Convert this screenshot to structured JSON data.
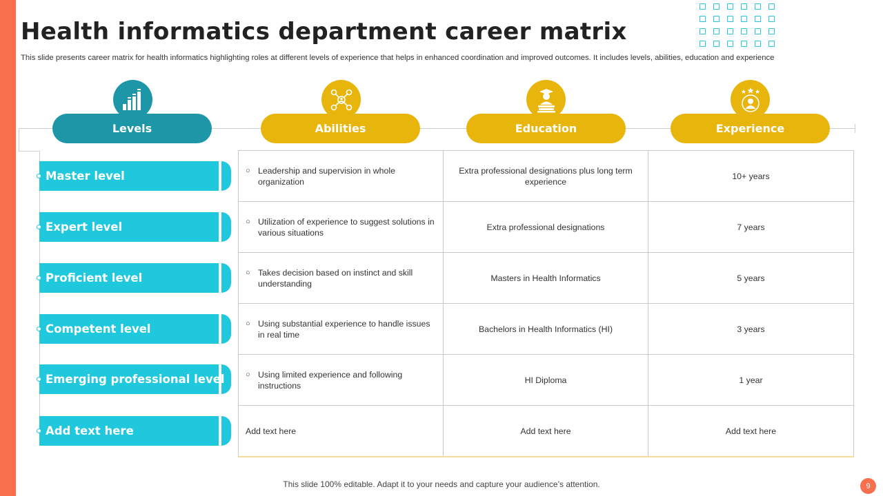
{
  "slide": {
    "title": "Health informatics department career matrix",
    "subtitle": "This slide presents career matrix for health informatics highlighting roles at different levels of experience that helps in enhanced coordination and improved outcomes. It includes levels, abilities, education and experience",
    "footer": "This slide 100% editable. Adapt it to your needs and capture your audience’s attention.",
    "page_number": "9"
  },
  "colors": {
    "accent_orange": "#f86f4e",
    "teal_dark": "#1d96a8",
    "cyan": "#1fc8dc",
    "gold": "#e8b50c"
  },
  "headers": [
    {
      "label": "Levels",
      "icon": "bar-chart-icon"
    },
    {
      "label": "Abilities",
      "icon": "network-people-icon"
    },
    {
      "label": "Education",
      "icon": "graduate-books-icon"
    },
    {
      "label": "Experience",
      "icon": "star-person-icon"
    }
  ],
  "rows": [
    {
      "level": "Master level",
      "ability": "Leadership and supervision in whole organization",
      "education": "Extra professional designations plus long term experience",
      "experience": "10+ years"
    },
    {
      "level": "Expert level",
      "ability": "Utilization of experience to suggest solutions in various situations",
      "education": "Extra professional designations",
      "experience": "7 years"
    },
    {
      "level": "Proficient level",
      "ability": "Takes decision based on instinct and skill understanding",
      "education": "Masters in Health Informatics",
      "experience": "5 years"
    },
    {
      "level": "Competent level",
      "ability": "Using substantial experience to handle issues in real time",
      "education": "Bachelors in Health Informatics (HI)",
      "experience": "3 years"
    },
    {
      "level": "Emerging professional level",
      "ability": "Using limited experience and following instructions",
      "education": "HI Diploma",
      "experience": "1 year"
    },
    {
      "level": "Add text here",
      "ability": "Add text here",
      "education": "Add text here",
      "experience": "Add text here"
    }
  ]
}
